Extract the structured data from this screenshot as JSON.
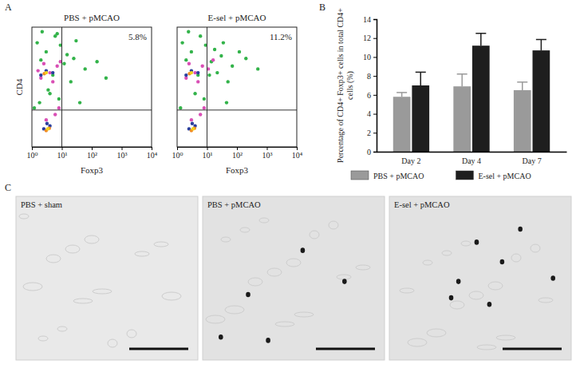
{
  "panel_labels": [
    "A",
    "B",
    "C"
  ],
  "chart_data": [
    {
      "type": "scatter",
      "title": "PBS + pMCAO",
      "x_label": "Foxp3",
      "y_label": "CD4",
      "log": true,
      "xlim": [
        1,
        10000
      ],
      "ylim": [
        1,
        10000
      ],
      "xticks": [
        {
          "value": 1,
          "label": "10⁰"
        },
        {
          "value": 10,
          "label": "10¹"
        },
        {
          "value": 100,
          "label": "10²"
        },
        {
          "value": 1000,
          "label": "10³"
        },
        {
          "value": 10000,
          "label": "10⁴"
        }
      ],
      "tick_labels": "x",
      "marker": "circle",
      "annotation": "5.8%",
      "gates": {
        "x": 10,
        "y": 17
      },
      "series": [
        {
          "color": "#33b34a",
          "x": [
            1.5,
            3,
            6,
            2,
            12,
            25,
            60,
            150,
            4,
            8,
            20,
            40,
            300,
            1.2,
            5,
            9,
            15,
            30,
            2.2,
            7,
            1.8,
            3.5
          ],
          "values": [
            3000,
            1500,
            5000,
            800,
            600,
            900,
            400,
            700,
            60,
            40,
            150,
            30,
            200,
            20,
            250,
            2500,
            1200,
            3500,
            7000,
            6000,
            30,
            80
          ]
        },
        {
          "color": "#d94fb5",
          "x": [
            2,
            4,
            7,
            3,
            6,
            2.5,
            5,
            8,
            1.6,
            9
          ],
          "values": [
            200,
            300,
            500,
            8,
            12,
            600,
            150,
            20,
            350,
            700
          ]
        },
        {
          "color": "#2a3f9e",
          "x": [
            2,
            3,
            5,
            2.5,
            4,
            3.2
          ],
          "values": [
            250,
            350,
            300,
            4,
            5,
            6
          ]
        },
        {
          "color": "#f08a24",
          "x": [
            3,
            2.6,
            3.8
          ],
          "values": [
            3.5,
            280,
            4.2
          ]
        },
        {
          "color": "#f2d21b",
          "x": [
            3,
            3.4
          ],
          "values": [
            300,
            4
          ]
        }
      ]
    },
    {
      "type": "scatter",
      "title": "E-sel + pMCAO",
      "x_label": "Foxp3",
      "log": true,
      "xlim": [
        1,
        10000
      ],
      "ylim": [
        1,
        10000
      ],
      "xticks": [
        {
          "value": 1,
          "label": "10⁰"
        },
        {
          "value": 10,
          "label": "10¹"
        },
        {
          "value": 100,
          "label": "10²"
        },
        {
          "value": 1000,
          "label": "10³"
        },
        {
          "value": 10000,
          "label": "10⁴"
        }
      ],
      "tick_labels": "x",
      "marker": "circle",
      "annotation": "11.2%",
      "gates": {
        "x": 10,
        "y": 17
      },
      "series": [
        {
          "color": "#33b34a",
          "x": [
            1.5,
            3,
            6,
            2,
            14,
            30,
            70,
            200,
            4,
            8,
            22,
            45,
            500,
            1.3,
            5,
            9,
            18,
            35,
            2.4,
            12,
            50,
            120
          ],
          "values": [
            3000,
            1500,
            5000,
            800,
            700,
            1100,
            500,
            900,
            60,
            40,
            300,
            30,
            400,
            20,
            250,
            2500,
            1800,
            3000,
            7000,
            250,
            150,
            1500
          ]
        },
        {
          "color": "#d94fb5",
          "x": [
            2,
            4,
            7,
            3,
            6,
            2.5,
            5,
            8,
            11,
            16
          ],
          "values": [
            200,
            300,
            500,
            8,
            12,
            600,
            150,
            20,
            400,
            800
          ]
        },
        {
          "color": "#2a3f9e",
          "x": [
            2,
            3,
            5,
            2.5,
            4,
            3.2
          ],
          "values": [
            250,
            350,
            300,
            4,
            5,
            6
          ]
        },
        {
          "color": "#f08a24",
          "x": [
            3,
            2.6,
            3.8
          ],
          "values": [
            3.5,
            280,
            4.2
          ]
        },
        {
          "color": "#f2d21b",
          "x": [
            3,
            3.4
          ],
          "values": [
            300,
            4
          ]
        }
      ]
    },
    {
      "type": "bar",
      "y_label": "Percentage of CD4+ Foxp3+ cells in total CD4+ cells (%)",
      "categories": [
        "Day 2",
        "Day 4",
        "Day 7"
      ],
      "ylim": [
        0,
        14
      ],
      "yticks": [
        0,
        2,
        4,
        6,
        8,
        10,
        12,
        14
      ],
      "grid": false,
      "legend": "bottom",
      "series": [
        {
          "name": "PBS + pMCAO",
          "color": "#9a9a9a",
          "values": [
            5.8,
            6.9,
            6.5
          ],
          "errors": [
            0.45,
            1.3,
            0.85
          ]
        },
        {
          "name": "E-sel + pMCAO",
          "color": "#1e1e1e",
          "values": [
            7.0,
            11.2,
            10.7
          ],
          "errors": [
            1.4,
            1.3,
            1.15
          ]
        }
      ]
    }
  ],
  "images": {
    "titles": [
      "PBS + sham",
      "PBS + pMCAO",
      "E-sel + pMCAO"
    ]
  }
}
